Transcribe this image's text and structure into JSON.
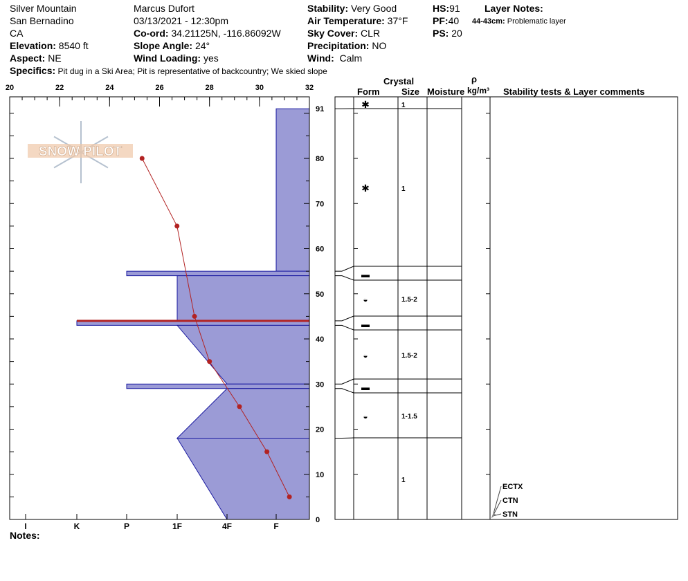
{
  "header": {
    "location": "Silver Mountain",
    "range": "San Bernadino",
    "state": "CA",
    "elevation_label": "Elevation:",
    "elevation": "8540 ft",
    "aspect_label": "Aspect:",
    "aspect": "NE",
    "observer": "Marcus Dufort",
    "datetime": "03/13/2021 - 12:30pm",
    "coord_label": "Co-ord:",
    "coord": "34.21125N, -116.86092W",
    "slope_label": "Slope Angle:",
    "slope": "24°",
    "wind_loading_label": "Wind Loading:",
    "wind_loading": "yes",
    "stability_label": "Stability:",
    "stability": "Very Good",
    "air_temp_label": "Air Temperature:",
    "air_temp": "37°F",
    "sky_label": "Sky Cover:",
    "sky": "CLR",
    "precip_label": "Precipitation:",
    "precip": "NO",
    "wind_label": "Wind:",
    "wind": "Calm",
    "hs_label": "HS:",
    "hs": "91",
    "pf_label": "PF:",
    "pf": "40",
    "ps_label": "PS:",
    "ps": "20",
    "layer_notes_label": "Layer Notes:",
    "layer_note_depth": "44-43cm:",
    "layer_note_text": "Problematic layer",
    "specifics_label": "Specifics:",
    "specifics": "Pit dug in a Ski Area; Pit is representative of backcountry;  We skied slope",
    "notes_label": "Notes:"
  },
  "logo": {
    "text": "SNOW PILOT"
  },
  "table_headers": {
    "crystal": "Crystal",
    "form": "Form",
    "size": "Size",
    "moisture": "Moisture",
    "rho": "ρ",
    "density_unit": "kg/m³",
    "tests": "Stability tests & Layer comments"
  },
  "colors": {
    "hardness_fill": "#9b9bd6",
    "hardness_stroke": "#1a1aa0",
    "temp": "#b22222"
  },
  "chart_data": {
    "type": "snow-profile",
    "temperature_axis": {
      "range": [
        20,
        32
      ],
      "ticks": [
        20,
        22,
        24,
        26,
        28,
        30,
        32
      ],
      "position": "top"
    },
    "depth_axis": {
      "range": [
        0,
        91
      ],
      "ticks": [
        0,
        10,
        20,
        30,
        40,
        50,
        60,
        70,
        80,
        91
      ]
    },
    "hardness_axis": {
      "ticks": [
        "I",
        "K",
        "P",
        "1F",
        "4F",
        "F"
      ]
    },
    "temperature_profile": [
      {
        "depth": 80,
        "temp": 25.3
      },
      {
        "depth": 65,
        "temp": 26.7
      },
      {
        "depth": 45,
        "temp": 27.4
      },
      {
        "depth": 35,
        "temp": 28.0
      },
      {
        "depth": 25,
        "temp": 29.2
      },
      {
        "depth": 15,
        "temp": 30.3
      },
      {
        "depth": 5,
        "temp": 31.2
      }
    ],
    "layers": [
      {
        "top": 91,
        "bottom": 55,
        "hardness_top": "F",
        "hardness_bottom": "F",
        "form": "precipitation-particles-icon",
        "size": "1"
      },
      {
        "top": 55,
        "bottom": 54,
        "hardness_top": "P",
        "hardness_bottom": "P",
        "form": "ice-formation-icon",
        "size": ""
      },
      {
        "top": 54,
        "bottom": 44,
        "hardness_top": "1F",
        "hardness_bottom": "1F",
        "form": "rounding-faceted-icon",
        "size": "1.5-2"
      },
      {
        "top": 44,
        "bottom": 43,
        "hardness_top": "K",
        "hardness_bottom": "K",
        "form": "ice-formation-icon",
        "size": "",
        "problematic": true
      },
      {
        "top": 43,
        "bottom": 30,
        "hardness_top": "1F",
        "hardness_bottom": "4F",
        "form": "rounding-faceted-icon",
        "size": "1.5-2"
      },
      {
        "top": 30,
        "bottom": 29,
        "hardness_top": "P",
        "hardness_bottom": "P",
        "form": "ice-formation-icon",
        "size": ""
      },
      {
        "top": 29,
        "bottom": 18,
        "hardness_top": "4F",
        "hardness_bottom": "1F",
        "form": "rounding-faceted-icon",
        "size": "1-1.5"
      },
      {
        "top": 18,
        "bottom": 0,
        "hardness_top": "1F",
        "hardness_bottom": "4F",
        "form": "",
        "size": "1"
      }
    ],
    "table_rows": [
      {
        "form": "✱",
        "size": "1"
      },
      {
        "form": "✱",
        "size": "1"
      },
      {
        "form": "▬",
        "size": ""
      },
      {
        "form": "◒",
        "size": "1.5-2"
      },
      {
        "form": "▬",
        "size": ""
      },
      {
        "form": "◒",
        "size": "1.5-2"
      },
      {
        "form": "▬",
        "size": ""
      },
      {
        "form": "◒",
        "size": "1-1.5"
      },
      {
        "form": "",
        "size": "1"
      }
    ],
    "stability_tests": [
      "ECTX",
      "CTN",
      "STN"
    ]
  }
}
